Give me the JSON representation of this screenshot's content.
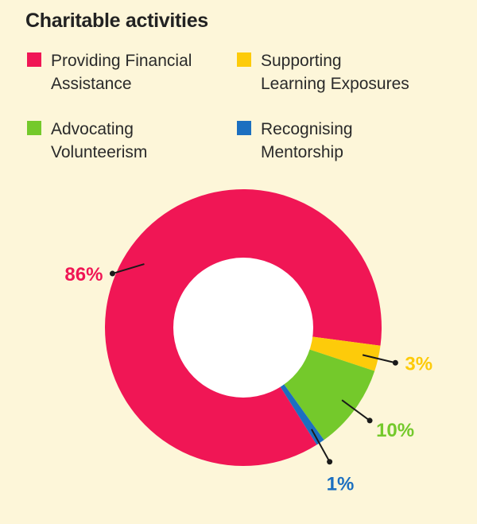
{
  "chart_data": {
    "type": "pie",
    "title": "Charitable activities",
    "legend_position": "top",
    "donut": true,
    "series": [
      {
        "name": "Providing Financial Assistance",
        "value": 86,
        "label": "86%",
        "color": "#f01655"
      },
      {
        "name": "Supporting Learning Exposures",
        "value": 3,
        "label": "3%",
        "color": "#fdcb0a"
      },
      {
        "name": "Advocating Volunteerism",
        "value": 10,
        "label": "10%",
        "color": "#74c92b"
      },
      {
        "name": "Recognising Mentorship",
        "value": 1,
        "label": "1%",
        "color": "#1c6fc0"
      }
    ]
  },
  "legend": {
    "items": [
      {
        "line1": "Providing Financial",
        "line2": "Assistance",
        "color": "#f01655"
      },
      {
        "line1": "Supporting",
        "line2": "Learning Exposures",
        "color": "#fdcb0a"
      },
      {
        "line1": "Advocating",
        "line2": "Volunteerism",
        "color": "#74c92b"
      },
      {
        "line1": "Recognising",
        "line2": "Mentorship",
        "color": "#1c6fc0"
      }
    ]
  }
}
